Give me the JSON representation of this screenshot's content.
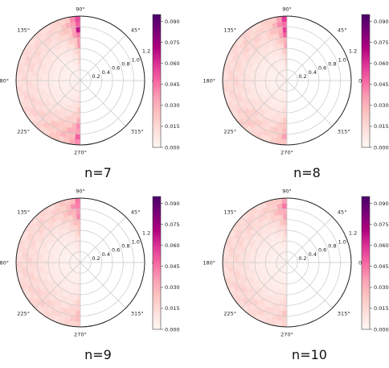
{
  "colors": {
    "cmap": [
      "#fff7f3",
      "#fde0dd",
      "#fcc5c0",
      "#fa9fb5",
      "#f768a1",
      "#dd3497",
      "#ae017e",
      "#7a0177",
      "#49006a"
    ],
    "grid": "#c8c8c8",
    "frame": "#222222"
  },
  "chart_data": [
    {
      "type": "heatmap",
      "subtype": "polar",
      "label": "n=7",
      "angle_ticks": [
        "0°",
        "45°",
        "90°",
        "135°",
        "180°",
        "225°",
        "270°",
        "315°"
      ],
      "radial_ticks": [
        "0.2",
        "0.4",
        "0.6",
        "0.8",
        "1.0",
        "1.2"
      ],
      "colorbar": {
        "ticks": [
          "0.000",
          "0.015",
          "0.030",
          "0.045",
          "0.060",
          "0.075",
          "0.090"
        ],
        "range": [
          0,
          0.095
        ]
      },
      "radial_range": [
        0,
        1.2
      ],
      "angle_range_deg": [
        90,
        270
      ],
      "density_theta": [
        {
          "angle": 90,
          "value": 0.085
        },
        {
          "angle": 100,
          "value": 0.035
        },
        {
          "angle": 115,
          "value": 0.02
        },
        {
          "angle": 135,
          "value": 0.018
        },
        {
          "angle": 160,
          "value": 0.02
        },
        {
          "angle": 180,
          "value": 0.016
        },
        {
          "angle": 205,
          "value": 0.02
        },
        {
          "angle": 225,
          "value": 0.022
        },
        {
          "angle": 250,
          "value": 0.03
        },
        {
          "angle": 265,
          "value": 0.04
        },
        {
          "angle": 270,
          "value": 0.07
        }
      ],
      "density_r": [
        {
          "r": 0.2,
          "value": 0.2
        },
        {
          "r": 0.5,
          "value": 0.35
        },
        {
          "r": 0.8,
          "value": 0.7
        },
        {
          "r": 1.0,
          "value": 1.0
        },
        {
          "r": 1.2,
          "value": 0.8
        }
      ]
    },
    {
      "type": "heatmap",
      "subtype": "polar",
      "label": "n=8",
      "angle_ticks": [
        "0°",
        "45°",
        "90°",
        "135°",
        "180°",
        "225°",
        "270°",
        "315°"
      ],
      "radial_ticks": [
        "0.2",
        "0.4",
        "0.6",
        "0.8",
        "1.0",
        "1.2"
      ],
      "colorbar": {
        "ticks": [
          "0.000",
          "0.015",
          "0.030",
          "0.045",
          "0.060",
          "0.075",
          "0.090"
        ],
        "range": [
          0,
          0.095
        ]
      },
      "radial_range": [
        0,
        1.2
      ],
      "angle_range_deg": [
        90,
        270
      ],
      "density_theta": [
        {
          "angle": 90,
          "value": 0.08
        },
        {
          "angle": 100,
          "value": 0.035
        },
        {
          "angle": 115,
          "value": 0.02
        },
        {
          "angle": 135,
          "value": 0.022
        },
        {
          "angle": 160,
          "value": 0.018
        },
        {
          "angle": 180,
          "value": 0.02
        },
        {
          "angle": 205,
          "value": 0.018
        },
        {
          "angle": 225,
          "value": 0.025
        },
        {
          "angle": 250,
          "value": 0.02
        },
        {
          "angle": 265,
          "value": 0.03
        },
        {
          "angle": 270,
          "value": 0.045
        }
      ],
      "density_r": [
        {
          "r": 0.2,
          "value": 0.2
        },
        {
          "r": 0.5,
          "value": 0.35
        },
        {
          "r": 0.8,
          "value": 0.7
        },
        {
          "r": 1.0,
          "value": 1.0
        },
        {
          "r": 1.2,
          "value": 0.8
        }
      ]
    },
    {
      "type": "heatmap",
      "subtype": "polar",
      "label": "n=9",
      "angle_ticks": [
        "0°",
        "45°",
        "90°",
        "135°",
        "180°",
        "225°",
        "270°",
        "315°"
      ],
      "radial_ticks": [
        "0.2",
        "0.4",
        "0.6",
        "0.8",
        "1.0",
        "1.2"
      ],
      "colorbar": {
        "ticks": [
          "0.000",
          "0.015",
          "0.030",
          "0.045",
          "0.060",
          "0.075",
          "0.090"
        ],
        "range": [
          0,
          0.095
        ]
      },
      "radial_range": [
        0,
        1.2
      ],
      "angle_range_deg": [
        90,
        270
      ],
      "density_theta": [
        {
          "angle": 90,
          "value": 0.06
        },
        {
          "angle": 100,
          "value": 0.035
        },
        {
          "angle": 115,
          "value": 0.022
        },
        {
          "angle": 135,
          "value": 0.02
        },
        {
          "angle": 160,
          "value": 0.018
        },
        {
          "angle": 180,
          "value": 0.02
        },
        {
          "angle": 205,
          "value": 0.02
        },
        {
          "angle": 225,
          "value": 0.022
        },
        {
          "angle": 250,
          "value": 0.018
        },
        {
          "angle": 265,
          "value": 0.025
        },
        {
          "angle": 270,
          "value": 0.035
        }
      ],
      "density_r": [
        {
          "r": 0.2,
          "value": 0.2
        },
        {
          "r": 0.5,
          "value": 0.35
        },
        {
          "r": 0.8,
          "value": 0.7
        },
        {
          "r": 1.0,
          "value": 1.0
        },
        {
          "r": 1.2,
          "value": 0.8
        }
      ]
    },
    {
      "type": "heatmap",
      "subtype": "polar",
      "label": "n=10",
      "angle_ticks": [
        "0°",
        "45°",
        "90°",
        "135°",
        "180°",
        "225°",
        "270°",
        "315°"
      ],
      "radial_ticks": [
        "0.2",
        "0.4",
        "0.6",
        "0.8",
        "1.0",
        "1.2"
      ],
      "colorbar": {
        "ticks": [
          "0.000",
          "0.015",
          "0.030",
          "0.045",
          "0.060",
          "0.075",
          "0.090"
        ],
        "range": [
          0,
          0.095
        ]
      },
      "radial_range": [
        0,
        1.2
      ],
      "angle_range_deg": [
        90,
        270
      ],
      "density_theta": [
        {
          "angle": 90,
          "value": 0.055
        },
        {
          "angle": 100,
          "value": 0.03
        },
        {
          "angle": 115,
          "value": 0.02
        },
        {
          "angle": 135,
          "value": 0.02
        },
        {
          "angle": 160,
          "value": 0.02
        },
        {
          "angle": 180,
          "value": 0.018
        },
        {
          "angle": 205,
          "value": 0.02
        },
        {
          "angle": 225,
          "value": 0.02
        },
        {
          "angle": 250,
          "value": 0.018
        },
        {
          "angle": 265,
          "value": 0.022
        },
        {
          "angle": 270,
          "value": 0.03
        }
      ],
      "density_r": [
        {
          "r": 0.2,
          "value": 0.2
        },
        {
          "r": 0.5,
          "value": 0.35
        },
        {
          "r": 0.8,
          "value": 0.7
        },
        {
          "r": 1.0,
          "value": 1.0
        },
        {
          "r": 1.2,
          "value": 0.8
        }
      ]
    }
  ]
}
